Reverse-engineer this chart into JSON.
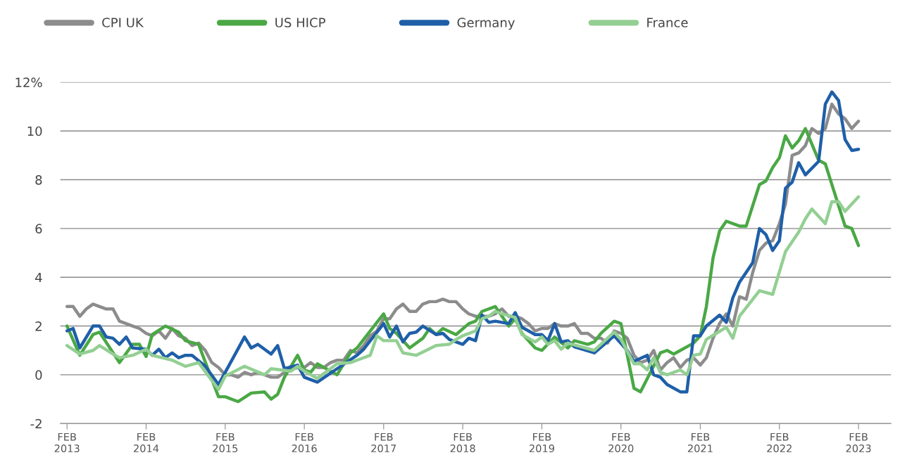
{
  "chart_data": {
    "type": "line",
    "ylim": [
      -2,
      12
    ],
    "yticks": [
      {
        "value": 12,
        "label": "12%"
      },
      10,
      8,
      6,
      4,
      2,
      0,
      -2
    ],
    "xlim": [
      "2013-01",
      "2023-07"
    ],
    "xticks": [
      {
        "value": "2013-02",
        "label": "FEB\n2013"
      },
      {
        "value": "2014-02",
        "label": "FEB\n2014"
      },
      {
        "value": "2015-02",
        "label": "FEB\n2015"
      },
      {
        "value": "2016-02",
        "label": "FEB\n2016"
      },
      {
        "value": "2017-02",
        "label": "FEB\n2017"
      },
      {
        "value": "2018-02",
        "label": "FEB\n2018"
      },
      {
        "value": "2019-02",
        "label": "FEB\n2019"
      },
      {
        "value": "2020-02",
        "label": "FEB\n2020"
      },
      {
        "value": "2021-02",
        "label": "FEB\n2021"
      },
      {
        "value": "2022-02",
        "label": "FEB\n2022"
      },
      {
        "value": "2023-02",
        "label": "FEB\n2023"
      }
    ],
    "grid": "y",
    "legend": "top",
    "marker": "none",
    "line_style": "solid",
    "series": [
      {
        "name": "CPI UK",
        "color": "#8c8c8c",
        "x": [
          "2013-02",
          "2013-03",
          "2013-04",
          "2013-05",
          "2013-06",
          "2013-07",
          "2013-08",
          "2013-09",
          "2013-10",
          "2013-11",
          "2013-12",
          "2014-01",
          "2014-02",
          "2014-03",
          "2014-04",
          "2014-05",
          "2014-06",
          "2014-07",
          "2014-08",
          "2014-09",
          "2014-10",
          "2014-11",
          "2014-12",
          "2015-01",
          "2015-02",
          "2015-03",
          "2015-04",
          "2015-05",
          "2015-06",
          "2015-07",
          "2015-08",
          "2015-09",
          "2015-10",
          "2015-11",
          "2015-12",
          "2016-01",
          "2016-02",
          "2016-03",
          "2016-04",
          "2016-05",
          "2016-06",
          "2016-07",
          "2016-08",
          "2016-09",
          "2016-10",
          "2016-11",
          "2016-12",
          "2017-01",
          "2017-02",
          "2017-03",
          "2017-04",
          "2017-05",
          "2017-06",
          "2017-07",
          "2017-08",
          "2017-09",
          "2017-10",
          "2017-11",
          "2017-12",
          "2018-01",
          "2018-02",
          "2018-03",
          "2018-04",
          "2018-05",
          "2018-06",
          "2018-07",
          "2018-08",
          "2018-09",
          "2018-10",
          "2018-11",
          "2018-12",
          "2019-01",
          "2019-02",
          "2019-03",
          "2019-04",
          "2019-05",
          "2019-06",
          "2019-07",
          "2019-08",
          "2019-09",
          "2019-10",
          "2019-11",
          "2019-12",
          "2020-01",
          "2020-02",
          "2020-03",
          "2020-04",
          "2020-05",
          "2020-06",
          "2020-07",
          "2020-08",
          "2020-09",
          "2020-10",
          "2020-11",
          "2020-12",
          "2021-01",
          "2021-02",
          "2021-03",
          "2021-04",
          "2021-05",
          "2021-06",
          "2021-07",
          "2021-08",
          "2021-09",
          "2021-10",
          "2021-11",
          "2021-12",
          "2022-01",
          "2022-02",
          "2022-03",
          "2022-04",
          "2022-05",
          "2022-06",
          "2022-07",
          "2022-08",
          "2022-09",
          "2022-10",
          "2022-11",
          "2022-12",
          "2023-01",
          "2023-02"
        ],
        "values": [
          2.8,
          2.8,
          2.4,
          2.7,
          2.9,
          2.8,
          2.7,
          2.7,
          2.2,
          2.1,
          2.0,
          1.9,
          1.7,
          1.6,
          1.8,
          1.5,
          1.9,
          1.6,
          1.5,
          1.2,
          1.3,
          1.0,
          0.5,
          0.3,
          0.0,
          0.0,
          -0.1,
          0.1,
          0.0,
          0.1,
          0.0,
          -0.1,
          -0.1,
          0.1,
          0.2,
          0.3,
          0.3,
          0.5,
          0.3,
          0.3,
          0.5,
          0.6,
          0.6,
          1.0,
          0.9,
          1.2,
          1.6,
          1.8,
          2.3,
          2.3,
          2.7,
          2.9,
          2.6,
          2.6,
          2.9,
          3.0,
          3.0,
          3.1,
          3.0,
          3.0,
          2.7,
          2.5,
          2.4,
          2.4,
          2.4,
          2.5,
          2.7,
          2.4,
          2.4,
          2.3,
          2.1,
          1.8,
          1.9,
          1.9,
          2.1,
          2.0,
          2.0,
          2.1,
          1.7,
          1.7,
          1.5,
          1.5,
          1.3,
          1.8,
          1.7,
          1.5,
          0.8,
          0.5,
          0.6,
          1.0,
          0.2,
          0.5,
          0.7,
          0.3,
          0.6,
          0.7,
          0.4,
          0.7,
          1.5,
          2.1,
          2.5,
          2.0,
          3.2,
          3.1,
          4.2,
          5.1,
          5.4,
          5.5,
          6.2,
          7.0,
          9.0,
          9.1,
          9.4,
          10.1,
          9.9,
          10.1,
          11.1,
          10.7,
          10.5,
          10.1,
          10.4
        ]
      },
      {
        "name": "US HICP",
        "color": "#4aa845",
        "x": [
          "2013-02",
          "2013-04",
          "2013-06",
          "2013-07",
          "2013-10",
          "2013-12",
          "2014-01",
          "2014-02",
          "2014-03",
          "2014-05",
          "2014-07",
          "2014-08",
          "2014-10",
          "2015-01",
          "2015-02",
          "2015-04",
          "2015-06",
          "2015-08",
          "2015-09",
          "2015-10",
          "2015-11",
          "2016-01",
          "2016-02",
          "2016-03",
          "2016-04",
          "2016-07",
          "2016-09",
          "2016-10",
          "2017-02",
          "2017-03",
          "2017-04",
          "2017-06",
          "2017-08",
          "2017-09",
          "2017-10",
          "2017-11",
          "2018-01",
          "2018-03",
          "2018-04",
          "2018-05",
          "2018-07",
          "2018-09",
          "2018-10",
          "2018-11",
          "2019-01",
          "2019-02",
          "2019-04",
          "2019-06",
          "2019-07",
          "2019-09",
          "2019-10",
          "2019-11",
          "2020-01",
          "2020-02",
          "2020-04",
          "2020-05",
          "2020-08",
          "2020-09",
          "2020-10",
          "2021-01",
          "2021-02",
          "2021-03",
          "2021-04",
          "2021-05",
          "2021-06",
          "2021-08",
          "2021-09",
          "2021-11",
          "2021-12",
          "2022-01",
          "2022-02",
          "2022-03",
          "2022-04",
          "2022-05",
          "2022-06",
          "2022-08",
          "2022-09",
          "2022-12",
          "2023-01",
          "2023-02"
        ],
        "values": [
          2.0,
          0.8,
          1.65,
          1.75,
          0.5,
          1.25,
          1.25,
          0.75,
          1.65,
          2.0,
          1.75,
          1.4,
          1.25,
          -0.9,
          -0.9,
          -1.1,
          -0.75,
          -0.7,
          -1.0,
          -0.8,
          -0.1,
          0.8,
          0.2,
          0.1,
          0.45,
          0.0,
          0.9,
          1.1,
          2.5,
          1.9,
          1.7,
          1.1,
          1.5,
          1.9,
          1.65,
          1.9,
          1.65,
          2.1,
          2.2,
          2.6,
          2.8,
          2.0,
          2.3,
          1.7,
          1.1,
          1.0,
          1.55,
          1.1,
          1.4,
          1.25,
          1.35,
          1.7,
          2.2,
          2.1,
          -0.55,
          -0.7,
          0.9,
          1.0,
          0.85,
          1.3,
          1.6,
          2.8,
          4.8,
          5.9,
          6.3,
          6.1,
          6.1,
          7.8,
          7.95,
          8.5,
          8.9,
          9.8,
          9.3,
          9.6,
          10.1,
          8.8,
          8.65,
          6.1,
          6.0,
          5.3
        ]
      },
      {
        "name": "Germany",
        "color": "#1f5fa8",
        "x": [
          "2013-02",
          "2013-03",
          "2013-04",
          "2013-06",
          "2013-07",
          "2013-08",
          "2013-09",
          "2013-10",
          "2013-11",
          "2013-12",
          "2014-02",
          "2014-03",
          "2014-04",
          "2014-05",
          "2014-06",
          "2014-07",
          "2014-08",
          "2014-09",
          "2014-11",
          "2015-01",
          "2015-02",
          "2015-05",
          "2015-06",
          "2015-07",
          "2015-09",
          "2015-10",
          "2015-11",
          "2016-01",
          "2016-02",
          "2016-04",
          "2016-07",
          "2016-10",
          "2016-11",
          "2017-02",
          "2017-03",
          "2017-04",
          "2017-05",
          "2017-06",
          "2017-07",
          "2017-08",
          "2017-10",
          "2017-11",
          "2017-12",
          "2018-02",
          "2018-03",
          "2018-04",
          "2018-05",
          "2018-06",
          "2018-07",
          "2018-09",
          "2018-10",
          "2018-11",
          "2019-01",
          "2019-02",
          "2019-03",
          "2019-04",
          "2019-05",
          "2019-06",
          "2019-07",
          "2019-10",
          "2020-01",
          "2020-03",
          "2020-04",
          "2020-06",
          "2020-07",
          "2020-08",
          "2020-09",
          "2020-11",
          "2020-12",
          "2021-01",
          "2021-02",
          "2021-03",
          "2021-05",
          "2021-06",
          "2021-07",
          "2021-08",
          "2021-10",
          "2021-11",
          "2021-12",
          "2022-01",
          "2022-02",
          "2022-03",
          "2022-04",
          "2022-05",
          "2022-06",
          "2022-08",
          "2022-09",
          "2022-10",
          "2022-11",
          "2022-12",
          "2023-01",
          "2023-02"
        ],
        "values": [
          1.8,
          1.9,
          1.1,
          2.0,
          2.0,
          1.55,
          1.5,
          1.25,
          1.55,
          1.1,
          1.05,
          0.8,
          1.05,
          0.7,
          0.9,
          0.7,
          0.8,
          0.8,
          0.35,
          -0.4,
          0.1,
          1.55,
          1.1,
          1.25,
          0.85,
          1.2,
          0.25,
          0.4,
          -0.1,
          -0.3,
          0.25,
          0.8,
          1.05,
          2.1,
          1.55,
          2.0,
          1.35,
          1.7,
          1.75,
          2.0,
          1.65,
          1.7,
          1.45,
          1.25,
          1.5,
          1.4,
          2.45,
          2.15,
          2.2,
          2.1,
          2.55,
          1.95,
          1.65,
          1.65,
          1.4,
          2.1,
          1.35,
          1.4,
          1.15,
          0.9,
          1.6,
          1.0,
          0.55,
          0.8,
          0.0,
          -0.1,
          -0.4,
          -0.7,
          -0.7,
          1.6,
          1.6,
          2.0,
          2.45,
          2.15,
          3.15,
          3.8,
          4.6,
          6.0,
          5.75,
          5.1,
          5.5,
          7.65,
          7.9,
          8.7,
          8.2,
          8.75,
          11.1,
          11.6,
          11.25,
          9.65,
          9.2,
          9.25
        ]
      },
      {
        "name": "France",
        "color": "#93cf93",
        "x": [
          "2013-02",
          "2013-04",
          "2013-06",
          "2013-07",
          "2013-09",
          "2013-10",
          "2013-12",
          "2014-02",
          "2014-03",
          "2014-06",
          "2014-08",
          "2014-10",
          "2015-01",
          "2015-02",
          "2015-05",
          "2015-08",
          "2015-09",
          "2015-12",
          "2016-01",
          "2016-02",
          "2016-04",
          "2016-07",
          "2016-09",
          "2016-12",
          "2017-01",
          "2017-02",
          "2017-04",
          "2017-05",
          "2017-07",
          "2017-10",
          "2017-12",
          "2018-01",
          "2018-02",
          "2018-04",
          "2018-05",
          "2018-06",
          "2018-07",
          "2018-08",
          "2018-10",
          "2018-11",
          "2019-01",
          "2019-02",
          "2019-03",
          "2019-04",
          "2019-05",
          "2019-06",
          "2019-10",
          "2020-01",
          "2020-02",
          "2020-04",
          "2020-05",
          "2020-06",
          "2020-07",
          "2020-08",
          "2020-09",
          "2020-11",
          "2020-12",
          "2021-01",
          "2021-02",
          "2021-03",
          "2021-06",
          "2021-07",
          "2021-08",
          "2021-11",
          "2022-01",
          "2022-03",
          "2022-05",
          "2022-06",
          "2022-07",
          "2022-09",
          "2022-10",
          "2022-11",
          "2022-12",
          "2023-02"
        ],
        "values": [
          1.2,
          0.85,
          1.0,
          1.2,
          0.85,
          0.7,
          0.8,
          1.05,
          0.8,
          0.6,
          0.35,
          0.5,
          -0.6,
          -0.05,
          0.35,
          0.0,
          0.25,
          0.15,
          0.35,
          0.15,
          -0.15,
          0.45,
          0.5,
          0.8,
          1.6,
          1.4,
          1.4,
          0.9,
          0.8,
          1.2,
          1.25,
          1.45,
          1.6,
          1.8,
          2.3,
          2.4,
          2.6,
          2.5,
          2.35,
          1.65,
          1.35,
          1.55,
          1.25,
          1.4,
          1.05,
          1.3,
          1.0,
          1.75,
          1.45,
          0.45,
          0.45,
          0.2,
          0.7,
          0.1,
          0.0,
          0.2,
          0.0,
          0.8,
          0.85,
          1.45,
          1.95,
          1.5,
          2.4,
          3.45,
          3.3,
          5.05,
          5.85,
          6.4,
          6.8,
          6.2,
          7.1,
          7.1,
          6.7,
          7.3
        ]
      }
    ]
  }
}
